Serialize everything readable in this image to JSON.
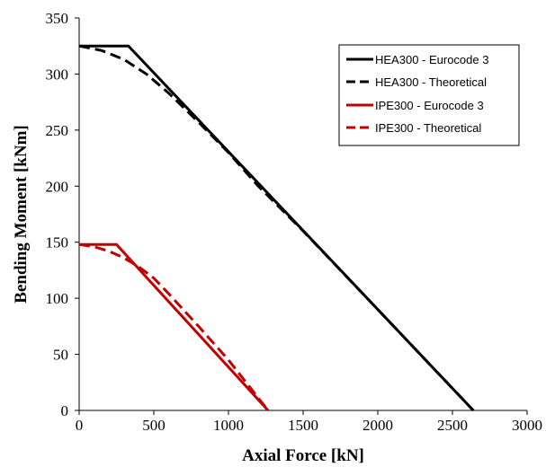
{
  "chart_data": {
    "type": "line",
    "title": "",
    "xlabel": "Axial Force [kN]",
    "ylabel": "Bending Moment [kNm]",
    "xlim": [
      0,
      3000
    ],
    "ylim": [
      0,
      350
    ],
    "xticks": [
      0,
      500,
      1000,
      1500,
      2000,
      2500,
      3000
    ],
    "yticks": [
      0,
      50,
      100,
      150,
      200,
      250,
      300,
      350
    ],
    "grid": false,
    "legend_position": "top-right",
    "series": [
      {
        "name": "HEA300 - Eurocode 3",
        "color": "#000000",
        "dash": "solid",
        "x": [
          0,
          330,
          2640
        ],
        "y": [
          325,
          325,
          0
        ]
      },
      {
        "name": "HEA300 - Theoretical",
        "color": "#000000",
        "dash": "dashed",
        "x": [
          0,
          150,
          300,
          450,
          600,
          800,
          1000,
          1200,
          1500,
          2000,
          2640
        ],
        "y": [
          325,
          321,
          313,
          300,
          283,
          257,
          230,
          200,
          160,
          90,
          0
        ]
      },
      {
        "name": "IPE300 - Eurocode 3",
        "color": "#c00000",
        "dash": "solid",
        "x": [
          0,
          250,
          1265
        ],
        "y": [
          148,
          148,
          0
        ]
      },
      {
        "name": "IPE300 - Theoretical",
        "color": "#c00000",
        "dash": "dashed",
        "x": [
          0,
          100,
          200,
          300,
          400,
          500,
          600,
          800,
          1000,
          1265
        ],
        "y": [
          148,
          146,
          142,
          136,
          128,
          118,
          104,
          75,
          45,
          0
        ]
      }
    ]
  }
}
